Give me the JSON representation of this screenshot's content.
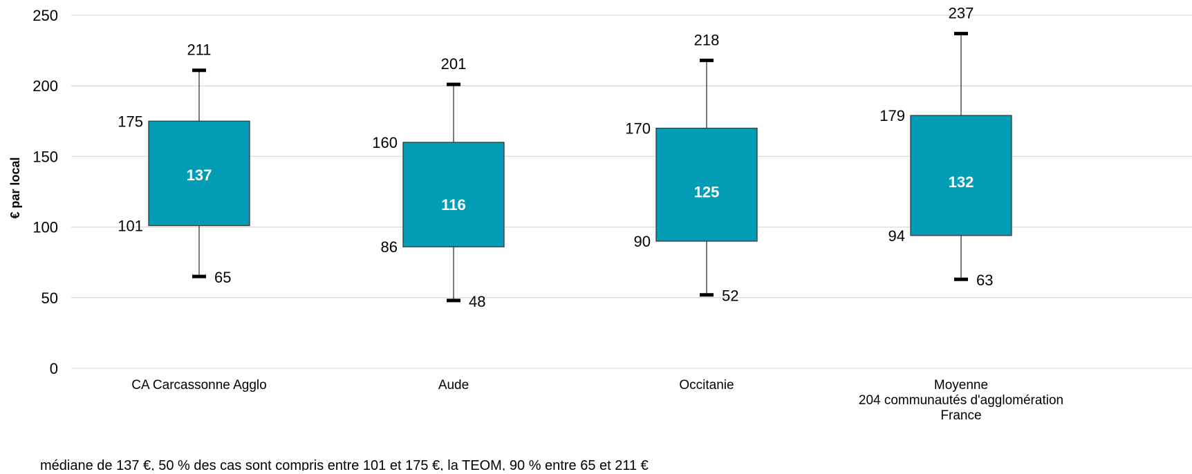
{
  "chart_data": {
    "type": "box",
    "ylabel": "€ par local",
    "xlabel": "",
    "ylim": [
      0,
      250
    ],
    "yticks": [
      0,
      50,
      100,
      150,
      200,
      250
    ],
    "grid": true,
    "colors": {
      "box": "#029DB4",
      "box_stroke": "#3a3a3a",
      "whisker": "#333333",
      "cap": "#000000",
      "grid": "#d9d9d9",
      "median_text": "#ffffff"
    },
    "categories": [
      [
        "CA Carcassonne Agglo"
      ],
      [
        "Aude"
      ],
      [
        "Occitanie"
      ],
      [
        "Moyenne",
        "204 communautés d'agglomération",
        "France"
      ]
    ],
    "boxes": [
      {
        "min": 65,
        "q1": 101,
        "median": 137,
        "q3": 175,
        "max": 211
      },
      {
        "min": 48,
        "q1": 86,
        "median": 116,
        "q3": 160,
        "max": 201
      },
      {
        "min": 52,
        "q1": 90,
        "median": 125,
        "q3": 170,
        "max": 218
      },
      {
        "min": 63,
        "q1": 94,
        "median": 132,
        "q3": 179,
        "max": 237
      }
    ]
  },
  "footnote": "médiane de 137 €, 50 % des cas sont compris entre 101 et 175 €, la TEOM, 90 % entre 65 et 211 €"
}
